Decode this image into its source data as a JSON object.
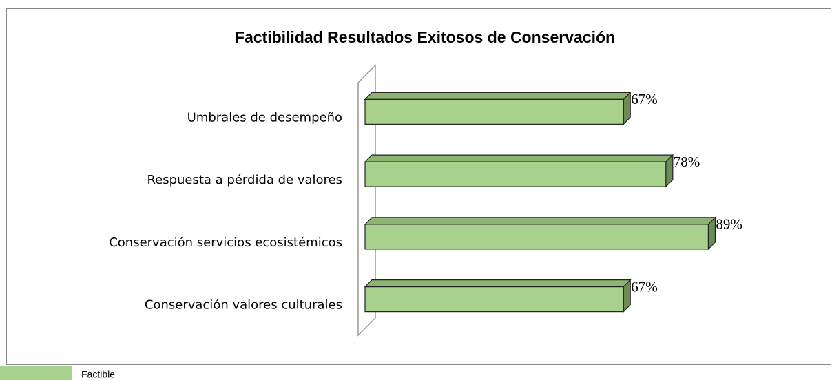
{
  "chart_data": {
    "type": "bar3d_horizontal",
    "title": "Factibilidad Resultados Exitosos de Conservación",
    "categories": [
      "Umbrales de desempeño",
      "Respuesta a pérdida de valores",
      "Conservación servicios ecosistémicos",
      "Conservación valores culturales"
    ],
    "series": [
      {
        "name": "Factible",
        "color": "#a9d18e",
        "values": [
          67,
          78,
          89,
          67
        ],
        "value_labels": [
          "67%",
          "78%",
          "89%",
          "67%"
        ]
      }
    ],
    "xlim": [
      0,
      100
    ],
    "legend": "bottom-left"
  }
}
